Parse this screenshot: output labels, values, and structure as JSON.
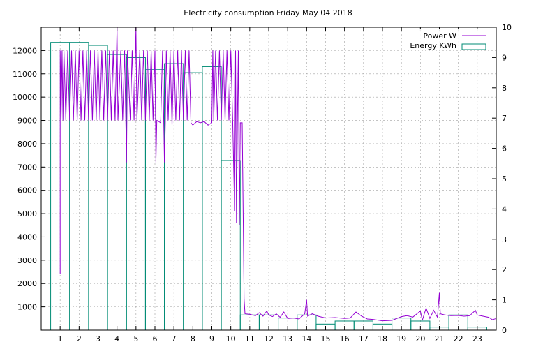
{
  "chart_data": {
    "type": "bar",
    "title": "Electricity consumption Friday May 04 2018",
    "xlabel": "",
    "ylabel": "",
    "x_ticks": [
      "1",
      "2",
      "3",
      "4",
      "5",
      "6",
      "7",
      "8",
      "9",
      "10",
      "11",
      "12",
      "13",
      "14",
      "15",
      "16",
      "17",
      "18",
      "19",
      "20",
      "21",
      "22",
      "23"
    ],
    "xlim": [
      0,
      24
    ],
    "ylim": [
      0,
      13000
    ],
    "y_ticks": [
      "1000",
      "2000",
      "3000",
      "4000",
      "5000",
      "6000",
      "7000",
      "8000",
      "9000",
      "10000",
      "11000",
      "12000"
    ],
    "y2lim": [
      0,
      10
    ],
    "y2_ticks": [
      "0",
      "1",
      "2",
      "3",
      "4",
      "5",
      "6",
      "7",
      "8",
      "9",
      "10"
    ],
    "grid": true,
    "legend": "top-right",
    "series": [
      {
        "name": "Power W",
        "kind": "line",
        "axis": "y1",
        "color": "#9400d3",
        "points": [
          [
            1.0,
            2400
          ],
          [
            1.0,
            12000
          ],
          [
            1.05,
            9000
          ],
          [
            1.1,
            12000
          ],
          [
            1.15,
            9000
          ],
          [
            1.2,
            12000
          ],
          [
            1.3,
            9000
          ],
          [
            1.4,
            12000
          ],
          [
            1.5,
            9000
          ],
          [
            1.6,
            12000
          ],
          [
            1.7,
            9000
          ],
          [
            1.8,
            12000
          ],
          [
            1.9,
            9000
          ],
          [
            2.0,
            12000
          ],
          [
            2.1,
            9000
          ],
          [
            2.2,
            12000
          ],
          [
            2.3,
            9000
          ],
          [
            2.4,
            12000
          ],
          [
            2.5,
            9000
          ],
          [
            2.6,
            12000
          ],
          [
            2.7,
            9000
          ],
          [
            2.8,
            12000
          ],
          [
            2.9,
            9000
          ],
          [
            3.0,
            12000
          ],
          [
            3.1,
            9000
          ],
          [
            3.2,
            12000
          ],
          [
            3.3,
            9000
          ],
          [
            3.4,
            12000
          ],
          [
            3.5,
            9000
          ],
          [
            3.6,
            12000
          ],
          [
            3.7,
            9000
          ],
          [
            3.8,
            12000
          ],
          [
            3.9,
            9000
          ],
          [
            4.0,
            13000
          ],
          [
            4.05,
            9000
          ],
          [
            4.2,
            12000
          ],
          [
            4.3,
            9000
          ],
          [
            4.4,
            12000
          ],
          [
            4.5,
            7200
          ],
          [
            4.55,
            12000
          ],
          [
            4.7,
            9000
          ],
          [
            4.8,
            12000
          ],
          [
            4.9,
            9000
          ],
          [
            5.0,
            13000
          ],
          [
            5.05,
            9000
          ],
          [
            5.2,
            12000
          ],
          [
            5.3,
            9000
          ],
          [
            5.4,
            12000
          ],
          [
            5.5,
            9000
          ],
          [
            5.6,
            12000
          ],
          [
            5.7,
            9000
          ],
          [
            5.8,
            12000
          ],
          [
            5.9,
            9000
          ],
          [
            6.0,
            12000
          ],
          [
            6.05,
            7200
          ],
          [
            6.1,
            9000
          ],
          [
            6.3,
            8900
          ],
          [
            6.4,
            12000
          ],
          [
            6.5,
            7200
          ],
          [
            6.55,
            8900
          ],
          [
            6.6,
            12000
          ],
          [
            6.7,
            9000
          ],
          [
            6.8,
            12000
          ],
          [
            6.9,
            8800
          ],
          [
            7.0,
            12000
          ],
          [
            7.1,
            9000
          ],
          [
            7.2,
            12000
          ],
          [
            7.3,
            9000
          ],
          [
            7.4,
            12000
          ],
          [
            7.5,
            9000
          ],
          [
            7.6,
            12000
          ],
          [
            7.7,
            9000
          ],
          [
            7.8,
            12000
          ],
          [
            7.9,
            8900
          ],
          [
            8.0,
            8800
          ],
          [
            8.2,
            8950
          ],
          [
            8.4,
            8900
          ],
          [
            8.6,
            8950
          ],
          [
            8.8,
            8800
          ],
          [
            9.0,
            8900
          ],
          [
            9.05,
            12000
          ],
          [
            9.1,
            9000
          ],
          [
            9.2,
            12000
          ],
          [
            9.3,
            9000
          ],
          [
            9.4,
            12000
          ],
          [
            9.5,
            9000
          ],
          [
            9.6,
            12000
          ],
          [
            9.7,
            9000
          ],
          [
            9.8,
            12000
          ],
          [
            9.9,
            9000
          ],
          [
            10.0,
            12000
          ],
          [
            10.1,
            9000
          ],
          [
            10.2,
            5100
          ],
          [
            10.25,
            12000
          ],
          [
            10.3,
            4600
          ],
          [
            10.35,
            9000
          ],
          [
            10.4,
            12000
          ],
          [
            10.45,
            4500
          ],
          [
            10.5,
            8900
          ],
          [
            10.6,
            8900
          ],
          [
            10.7,
            1350
          ],
          [
            10.75,
            700
          ],
          [
            11.0,
            680
          ],
          [
            11.3,
            620
          ],
          [
            11.5,
            750
          ],
          [
            11.7,
            600
          ],
          [
            11.9,
            820
          ],
          [
            12.0,
            650
          ],
          [
            12.2,
            580
          ],
          [
            12.4,
            700
          ],
          [
            12.6,
            550
          ],
          [
            12.8,
            780
          ],
          [
            13.0,
            500
          ],
          [
            13.3,
            520
          ],
          [
            13.6,
            480
          ],
          [
            13.9,
            700
          ],
          [
            14.0,
            1300
          ],
          [
            14.05,
            600
          ],
          [
            14.3,
            700
          ],
          [
            14.6,
            600
          ],
          [
            15.0,
            520
          ],
          [
            15.5,
            540
          ],
          [
            16.0,
            500
          ],
          [
            16.3,
            520
          ],
          [
            16.6,
            780
          ],
          [
            16.9,
            600
          ],
          [
            17.2,
            480
          ],
          [
            17.5,
            460
          ],
          [
            18.0,
            400
          ],
          [
            18.5,
            420
          ],
          [
            19.0,
            580
          ],
          [
            19.3,
            620
          ],
          [
            19.6,
            560
          ],
          [
            20.0,
            820
          ],
          [
            20.1,
            420
          ],
          [
            20.3,
            950
          ],
          [
            20.5,
            500
          ],
          [
            20.7,
            850
          ],
          [
            20.9,
            550
          ],
          [
            21.0,
            1600
          ],
          [
            21.05,
            700
          ],
          [
            21.3,
            650
          ],
          [
            21.6,
            620
          ],
          [
            22.0,
            630
          ],
          [
            22.3,
            600
          ],
          [
            22.6,
            620
          ],
          [
            22.9,
            850
          ],
          [
            23.0,
            650
          ],
          [
            23.3,
            600
          ],
          [
            23.6,
            550
          ],
          [
            23.8,
            450
          ],
          [
            24.0,
            500
          ]
        ]
      },
      {
        "name": "Energy KWh",
        "kind": "bar",
        "axis": "y2",
        "color": "#008b74",
        "x": [
          1,
          2,
          3,
          4,
          5,
          6,
          7,
          8,
          9,
          10,
          11,
          12,
          13,
          14,
          15,
          16,
          17,
          18,
          19,
          20,
          21,
          22,
          23
        ],
        "values": [
          9.5,
          9.5,
          9.4,
          9.1,
          9.0,
          8.6,
          8.8,
          8.5,
          8.7,
          5.6,
          0.5,
          0.5,
          0.4,
          0.5,
          0.2,
          0.3,
          0.3,
          0.2,
          0.4,
          0.3,
          0.1,
          0.5,
          0.1
        ]
      }
    ]
  }
}
